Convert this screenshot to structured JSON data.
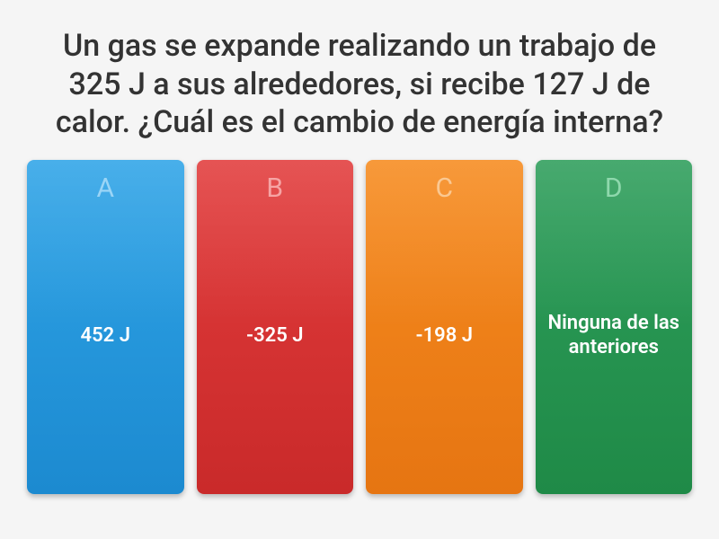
{
  "quiz": {
    "question": "Un gas se expande realizando un trabajo de 325 J a sus alrededores, si recibe 127 J de calor. ¿Cuál es el cambio de energía interna?",
    "question_color": "#333333",
    "question_fontsize": 34,
    "background_color": "#f5f5f5",
    "options": [
      {
        "letter": "A",
        "answer": "452 J",
        "bg_top": "#2fa4e7",
        "bg_bottom": "#1c8ad0",
        "letter_color": "#8fd0f5"
      },
      {
        "letter": "B",
        "answer": "-325 J",
        "bg_top": "#e23c3c",
        "bg_bottom": "#c92a2a",
        "letter_color": "#f59a9a"
      },
      {
        "letter": "C",
        "answer": "-198 J",
        "bg_top": "#f68b1f",
        "bg_bottom": "#e67512",
        "letter_color": "#fac285"
      },
      {
        "letter": "D",
        "answer": "Ninguna de las anteriores",
        "bg_top": "#2e9e5b",
        "bg_bottom": "#1f8a47",
        "letter_color": "#82d4a3"
      }
    ],
    "answer_color": "#ffffff",
    "answer_fontsize": 22,
    "letter_fontsize": 30,
    "card_border_radius": 8
  }
}
